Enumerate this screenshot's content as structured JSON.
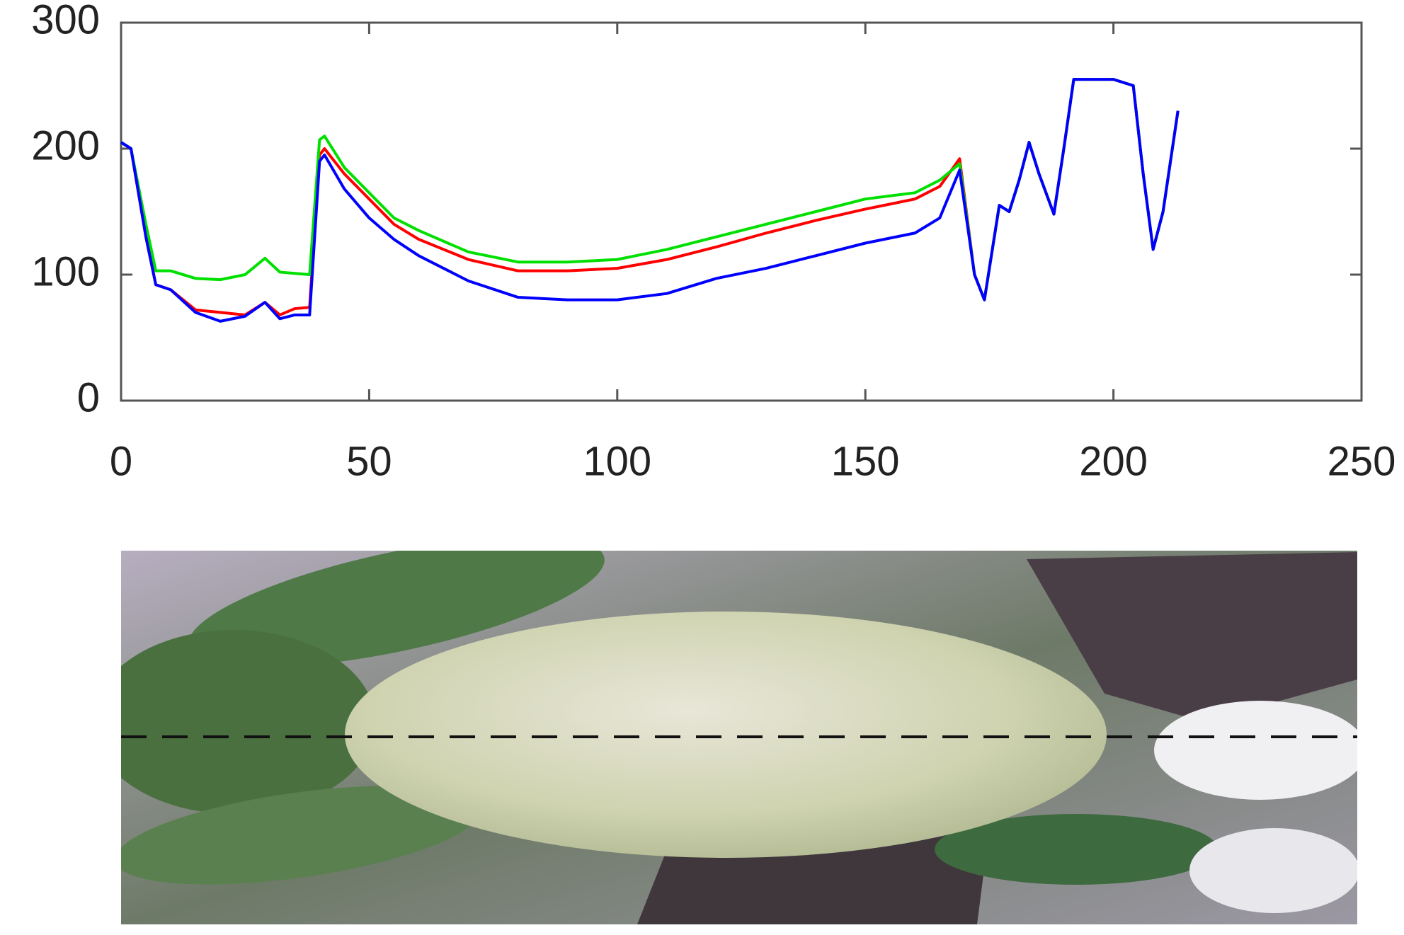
{
  "chart_data": {
    "type": "line",
    "x": [
      0,
      2,
      5,
      7,
      10,
      15,
      20,
      25,
      29,
      32,
      35,
      38,
      40,
      41,
      45,
      50,
      55,
      60,
      70,
      80,
      90,
      100,
      110,
      120,
      130,
      140,
      150,
      160,
      165,
      169,
      172,
      174,
      177,
      179,
      181,
      183,
      185,
      188,
      190,
      192,
      195,
      200,
      204,
      206,
      208,
      210,
      213
    ],
    "series": [
      {
        "color": "#ff0000",
        "values": [
          205,
          200,
          130,
          92,
          88,
          72,
          70,
          68,
          78,
          68,
          73,
          74,
          195,
          200,
          180,
          160,
          140,
          128,
          112,
          103,
          103,
          105,
          112,
          122,
          133,
          143,
          152,
          160,
          170,
          192,
          100,
          80,
          155,
          150,
          175,
          205,
          180,
          148,
          200,
          255,
          255,
          255,
          250,
          180,
          120,
          150,
          230
        ]
      },
      {
        "color": "#00e000",
        "values": [
          205,
          200,
          140,
          103,
          103,
          97,
          96,
          100,
          113,
          102,
          101,
          100,
          207,
          210,
          185,
          165,
          145,
          135,
          118,
          110,
          110,
          112,
          120,
          130,
          140,
          150,
          160,
          165,
          175,
          188,
          100,
          80,
          155,
          150,
          175,
          205,
          180,
          148,
          200,
          255,
          255,
          255,
          250,
          180,
          120,
          150,
          230
        ]
      },
      {
        "color": "#0000ff",
        "values": [
          205,
          200,
          130,
          92,
          88,
          70,
          63,
          67,
          78,
          65,
          68,
          68,
          190,
          195,
          168,
          145,
          128,
          115,
          95,
          82,
          80,
          80,
          85,
          97,
          105,
          115,
          125,
          133,
          145,
          183,
          100,
          80,
          155,
          150,
          175,
          205,
          180,
          148,
          200,
          255,
          255,
          255,
          250,
          180,
          120,
          150,
          230
        ]
      }
    ],
    "xlim": [
      0,
      250
    ],
    "xticks": [
      0,
      50,
      100,
      150,
      200,
      250
    ],
    "ylim": [
      0,
      300
    ],
    "yticks": [
      0,
      100,
      200,
      300
    ],
    "grid": false
  }
}
